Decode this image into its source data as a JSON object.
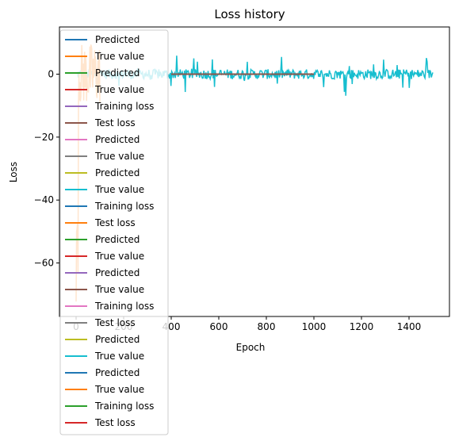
{
  "chart_data": {
    "type": "line",
    "title": "Loss history",
    "xlabel": "Epoch",
    "ylabel": "Loss",
    "xlim": [
      -70,
      1570
    ],
    "ylim": [
      -77,
      15
    ],
    "xticks": [
      0,
      200,
      400,
      600,
      800,
      1000,
      1200,
      1400
    ],
    "yticks": [
      0,
      -20,
      -40,
      -60
    ],
    "grid": false,
    "legend_position": "upper-left",
    "palette": [
      "#1f77b4",
      "#ff7f0e",
      "#2ca02c",
      "#d62728",
      "#9467bd",
      "#8c564b",
      "#e377c2",
      "#7f7f7f",
      "#bcbd22",
      "#17becf"
    ],
    "legend": [
      "Predicted",
      "True value",
      "Predicted",
      "True value",
      "Training loss",
      "Test loss",
      "Predicted",
      "True value",
      "Predicted",
      "True value",
      "Training loss",
      "Test loss",
      "Predicted",
      "True value",
      "Predicted",
      "True value",
      "Training loss",
      "Test loss",
      "Predicted",
      "True value",
      "Predicted",
      "True value",
      "Training loss",
      "Test loss"
    ],
    "series": [
      {
        "name": "True value",
        "color": "#17becf",
        "x_range": [
          0,
          1500
        ],
        "approx_mean": 0,
        "approx_amplitude": 3.5,
        "approx_spike_range": [
          -7,
          6
        ]
      },
      {
        "name": "True value",
        "color": "#ff7f0e",
        "x_range": [
          0,
          100
        ],
        "approx_range": [
          -75,
          12
        ]
      },
      {
        "name": "Test loss",
        "color": "#8c564b",
        "x_range": [
          400,
          1000
        ],
        "approx_value": 0
      }
    ]
  }
}
